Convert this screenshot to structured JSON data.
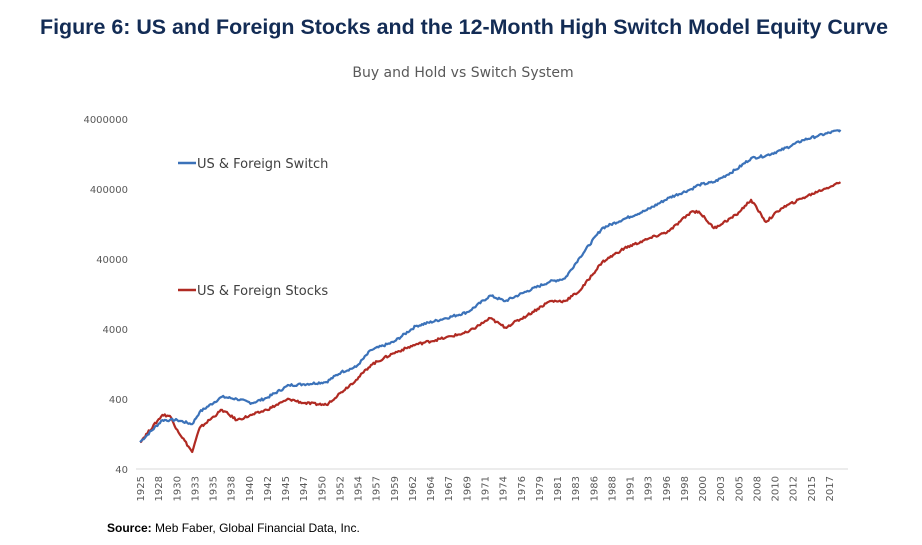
{
  "figure_title": "Figure 6: US and Foreign Stocks and the 12-Month High Switch Model Equity Curve",
  "source": {
    "label": "Source:",
    "text": "Meb Faber, Global Financial Data, Inc."
  },
  "chart_data": {
    "type": "line",
    "title": "Buy and Hold vs Switch System",
    "xlabel": "",
    "ylabel": "",
    "yscale": "log",
    "ylim": [
      40,
      4000000
    ],
    "xlim": [
      1925,
      2019.6
    ],
    "y_ticks": [
      "40",
      "400",
      "4000",
      "40000",
      "400000",
      "4000000"
    ],
    "y_tick_values": [
      40,
      400,
      4000,
      40000,
      400000,
      4000000
    ],
    "x_ticks": [
      "1925",
      "1928",
      "1930",
      "1933",
      "1935",
      "1938",
      "1940",
      "1942",
      "1945",
      "1947",
      "1950",
      "1952",
      "1954",
      "1957",
      "1959",
      "1962",
      "1964",
      "1967",
      "1969",
      "1971",
      "1974",
      "1976",
      "1979",
      "1981",
      "1983",
      "1986",
      "1988",
      "1991",
      "1993",
      "1996",
      "1998",
      "2000",
      "2003",
      "2005",
      "2008",
      "2010",
      "2012",
      "2015",
      "2017"
    ],
    "grid": false,
    "legend_placement": "left-inline",
    "series": [
      {
        "name": "US & Foreign Switch",
        "color": "#3b72b9",
        "x": [
          1925,
          1928,
          1929,
          1930,
          1932,
          1933,
          1936,
          1938,
          1940,
          1942,
          1945,
          1947,
          1950,
          1952,
          1954,
          1956,
          1959,
          1962,
          1966,
          1969,
          1972,
          1974,
          1977,
          1980,
          1982,
          1984,
          1987,
          1990,
          1993,
          1996,
          1999,
          2000,
          2002,
          2005,
          2007,
          2009,
          2011,
          2014,
          2016,
          2019
        ],
        "values": [
          97,
          200,
          200,
          200,
          175,
          260,
          430,
          400,
          350,
          415,
          630,
          650,
          700,
          970,
          1150,
          2000,
          2600,
          4400,
          5700,
          7000,
          12000,
          10000,
          14000,
          19000,
          21000,
          42000,
          110000,
          150000,
          200000,
          300000,
          400000,
          460000,
          500000,
          760000,
          1100000,
          1200000,
          1430000,
          2000000,
          2300000,
          2800000
        ]
      },
      {
        "name": "US & Foreign Stocks",
        "color": "#b02a22",
        "x": [
          1925,
          1928,
          1929,
          1930,
          1932,
          1933,
          1936,
          1938,
          1940,
          1942,
          1945,
          1947,
          1950,
          1952,
          1954,
          1956,
          1959,
          1962,
          1966,
          1969,
          1972,
          1974,
          1977,
          1980,
          1982,
          1984,
          1987,
          1990,
          1993,
          1996,
          1999,
          2000,
          2002,
          2005,
          2007,
          2009,
          2011,
          2014,
          2016,
          2019
        ],
        "values": [
          97,
          237,
          230,
          145,
          70,
          154,
          280,
          200,
          236,
          280,
          400,
          350,
          330,
          500,
          750,
          1230,
          1800,
          2400,
          3000,
          3600,
          5700,
          4200,
          6300,
          10000,
          10000,
          14000,
          36000,
          57000,
          76000,
          100000,
          190000,
          190000,
          110000,
          170000,
          280000,
          135000,
          210000,
          300000,
          370000,
          500000
        ]
      }
    ]
  }
}
